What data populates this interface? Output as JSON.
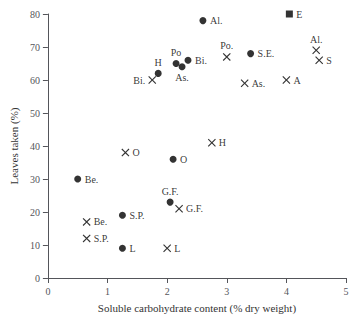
{
  "chart_data": {
    "type": "scatter",
    "xlabel": "Soluble carbohydrate content (% dry weight)",
    "ylabel": "Leaves taken (%)",
    "xlim": [
      0,
      5
    ],
    "ylim": [
      0,
      80
    ],
    "xticks": [
      0,
      1,
      2,
      3,
      4,
      5
    ],
    "yticks": [
      0,
      10,
      20,
      30,
      40,
      50,
      60,
      70,
      80
    ],
    "grid": false,
    "series": [
      {
        "marker": "circle",
        "color": "#000000",
        "x": [
          0.5,
          2.6,
          2.35,
          2.25,
          2.15,
          1.85,
          2.1,
          1.25,
          1.25,
          2.05,
          3.4
        ],
        "y": [
          30,
          78,
          66,
          64,
          65,
          62,
          36,
          9,
          19,
          23,
          68
        ],
        "labels": [
          "Be.",
          "Al.",
          "Bi.",
          "As.",
          "Po",
          "H",
          "O",
          "L",
          "S.P.",
          "G.F.",
          "S.E."
        ]
      },
      {
        "marker": "square",
        "color": "#000000",
        "x": [
          4.05
        ],
        "y": [
          80
        ],
        "labels": [
          "E"
        ]
      },
      {
        "marker": "cross",
        "color": "#000000",
        "x": [
          0.65,
          0.65,
          1.3,
          1.75,
          2.0,
          2.2,
          2.75,
          3.0,
          3.3,
          4.0,
          4.5,
          4.55
        ],
        "y": [
          17,
          12,
          38,
          60,
          9,
          21,
          41,
          67,
          59,
          60,
          69,
          66
        ],
        "labels": [
          "Be.",
          "S.P.",
          "O",
          "Bi.",
          "L",
          "G.F.",
          "H",
          "Po.",
          "As.",
          "A",
          "Al.",
          "S"
        ]
      }
    ]
  }
}
